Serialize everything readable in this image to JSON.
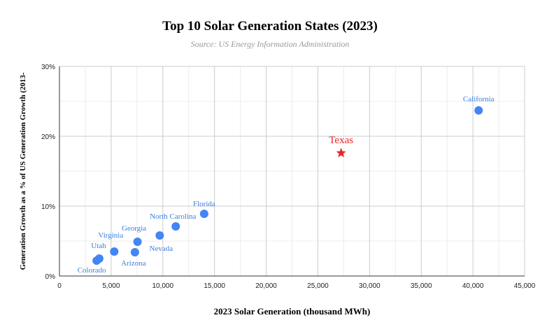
{
  "chart_data": {
    "type": "scatter",
    "title": "Top 10 Solar Generation States (2023)",
    "subtitle": "Source: US Energy Information Administration",
    "xlabel": "2023 Solar Generation (thousand MWh)",
    "ylabel": "Generation Growth as a % of US Generation Growth (2013-",
    "xlim": [
      0,
      45000
    ],
    "ylim": [
      0,
      30
    ],
    "x_ticks": [
      "0",
      "5,000",
      "10,000",
      "15,000",
      "20,000",
      "25,000",
      "30,000",
      "35,000",
      "40,000",
      "45,000"
    ],
    "y_ticks": [
      "0%",
      "10%",
      "20%",
      "30%"
    ],
    "grid": true,
    "colors": {
      "point": "#4285f4",
      "highlight": "#e8262b"
    },
    "points": [
      {
        "label": "California",
        "x": 40550,
        "y": 23.7
      },
      {
        "label": "Texas",
        "x": 27250,
        "y": 17.6,
        "highlight": true
      },
      {
        "label": "Florida",
        "x": 14000,
        "y": 8.9
      },
      {
        "label": "North Carolina",
        "x": 11250,
        "y": 7.1
      },
      {
        "label": "Nevada",
        "x": 9700,
        "y": 5.8
      },
      {
        "label": "Georgia",
        "x": 7550,
        "y": 4.9
      },
      {
        "label": "Arizona",
        "x": 7300,
        "y": 3.4
      },
      {
        "label": "Virginia",
        "x": 5300,
        "y": 3.5
      },
      {
        "label": "Utah",
        "x": 3850,
        "y": 2.5
      },
      {
        "label": "Colorado",
        "x": 3600,
        "y": 2.2
      }
    ]
  }
}
